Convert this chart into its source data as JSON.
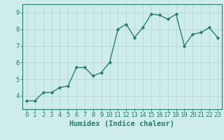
{
  "x": [
    0,
    1,
    2,
    3,
    4,
    5,
    6,
    7,
    8,
    9,
    10,
    11,
    12,
    13,
    14,
    15,
    16,
    17,
    18,
    19,
    20,
    21,
    22,
    23
  ],
  "y": [
    3.7,
    3.7,
    4.2,
    4.2,
    4.5,
    4.6,
    5.7,
    5.7,
    5.2,
    5.4,
    6.0,
    8.0,
    8.3,
    7.5,
    8.1,
    8.9,
    8.85,
    8.6,
    8.9,
    7.0,
    7.7,
    7.8,
    8.1,
    7.5
  ],
  "line_color": "#2a7d6c",
  "marker": "D",
  "marker_size": 2.2,
  "bg_color": "#ceecea",
  "grid_color": "#b8d8d6",
  "xlabel": "Humidex (Indice chaleur)",
  "ylim": [
    3.2,
    9.5
  ],
  "xlim": [
    -0.5,
    23.5
  ],
  "yticks": [
    4,
    5,
    6,
    7,
    8,
    9
  ],
  "xticks": [
    0,
    1,
    2,
    3,
    4,
    5,
    6,
    7,
    8,
    9,
    10,
    11,
    12,
    13,
    14,
    15,
    16,
    17,
    18,
    19,
    20,
    21,
    22,
    23
  ],
  "tick_color": "#2a7d6c",
  "spine_color": "#2a7d6c",
  "xlabel_fontsize": 7.5,
  "tick_fontsize": 6.5,
  "linewidth": 1.0
}
